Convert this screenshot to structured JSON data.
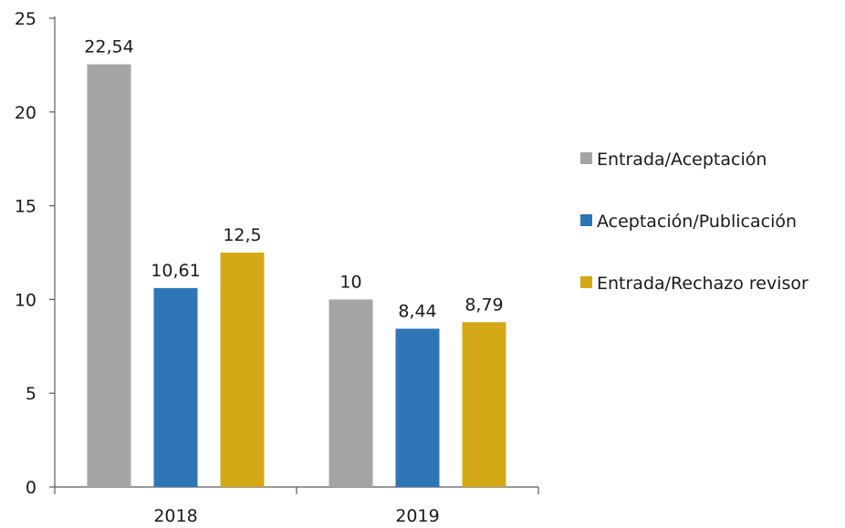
{
  "chart_data": {
    "type": "bar",
    "categories": [
      "2018",
      "2019"
    ],
    "series": [
      {
        "name": "Entrada/Aceptación",
        "values": [
          22.54,
          10
        ],
        "labels": [
          "22,54",
          "10"
        ],
        "color": "#A5A5A5"
      },
      {
        "name": "Aceptación/Publicación",
        "values": [
          10.61,
          8.44
        ],
        "labels": [
          "10,61",
          "8,44"
        ],
        "color": "#2E75B6"
      },
      {
        "name": "Entrada/Rechazo revisor",
        "values": [
          12.5,
          8.79
        ],
        "labels": [
          "12,5",
          "8,79"
        ],
        "color": "#D4A817"
      }
    ],
    "yticks": [
      "0",
      "5",
      "10",
      "15",
      "20",
      "25"
    ],
    "ylim": [
      0,
      25
    ],
    "grid": false,
    "legend_position": "right"
  }
}
